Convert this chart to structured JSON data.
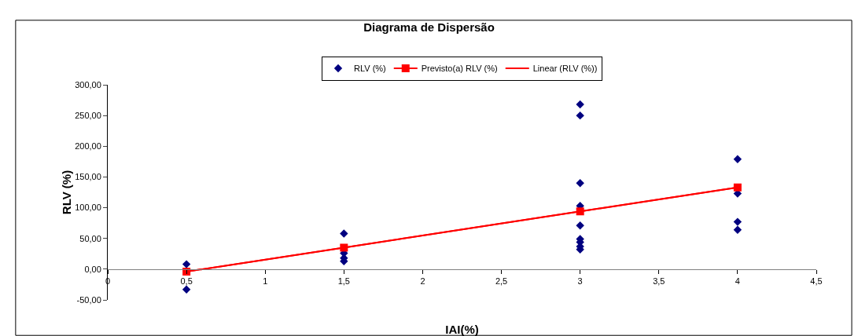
{
  "chart_data": {
    "type": "scatter",
    "title": "Diagrama de Dispersão",
    "xlabel": "IAI(%)",
    "ylabel": "RLV (%)",
    "series": [
      {
        "name": "RLV (%)",
        "type": "scatter",
        "marker": "diamond",
        "color": "#000080",
        "x": [
          0.5,
          0.5,
          1.5,
          1.5,
          1.5,
          1.5,
          3,
          3,
          3,
          3,
          3,
          3,
          3,
          3,
          3,
          4,
          4,
          4,
          4
        ],
        "values": [
          8,
          -33,
          58,
          26,
          18,
          13,
          268,
          250,
          140,
          103,
          71,
          49,
          44,
          37,
          32,
          179,
          123,
          77,
          64
        ]
      },
      {
        "name": "Previsto(a) RLV (%)",
        "type": "line",
        "marker": "square",
        "color": "#ff0000",
        "x": [
          0.5,
          1.5,
          3,
          4
        ],
        "values": [
          -4,
          35,
          94,
          133
        ]
      },
      {
        "name": "Linear (RLV (%))",
        "type": "line",
        "marker": "none",
        "color": "#ff0000",
        "x": [
          0.5,
          4
        ],
        "values": [
          -4,
          133
        ]
      }
    ],
    "xlim": [
      0,
      4.5
    ],
    "xticks": [
      0,
      {
        "value": 0.5,
        "label": "0,5"
      },
      1,
      {
        "value": 1.5,
        "label": "1,5"
      },
      2,
      {
        "value": 2.5,
        "label": "2,5"
      },
      3,
      {
        "value": 3.5,
        "label": "3,5"
      },
      4,
      {
        "value": 4.5,
        "label": "4,5"
      }
    ],
    "ylim": [
      -50,
      300
    ],
    "yticks": [
      {
        "value": -50,
        "label": "-50,00"
      },
      {
        "value": 0,
        "label": "0,00"
      },
      {
        "value": 50,
        "label": "50,00"
      },
      {
        "value": 100,
        "label": "100,00"
      },
      {
        "value": 150,
        "label": "150,00"
      },
      {
        "value": 200,
        "label": "200,00"
      },
      {
        "value": 250,
        "label": "250,00"
      },
      {
        "value": 300,
        "label": "300,00"
      }
    ],
    "grid": false,
    "legend": "top",
    "line_style": "solid"
  }
}
